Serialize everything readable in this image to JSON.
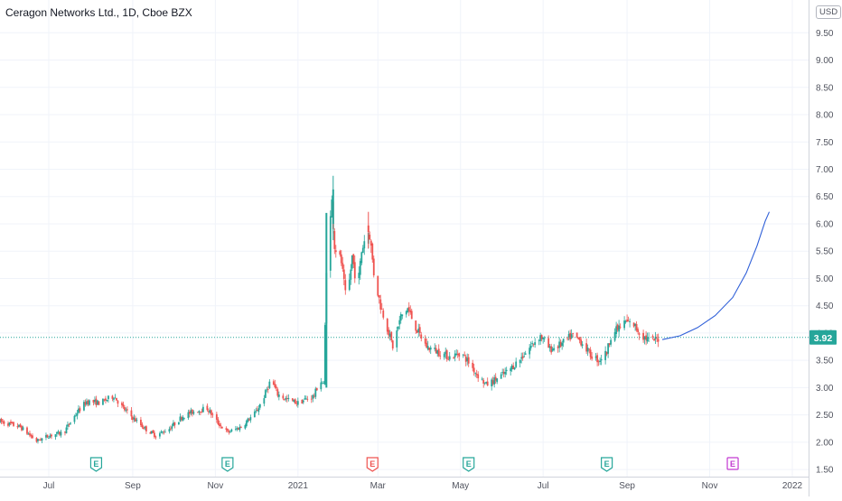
{
  "header": {
    "title": "Ceragon Networks Ltd., 1D, Cboe BZX",
    "currency": "USD"
  },
  "chart_data": {
    "type": "candlestick",
    "y_ticks": [
      1.5,
      2.0,
      2.5,
      3.0,
      3.5,
      4.0,
      4.5,
      5.0,
      5.5,
      6.0,
      6.5,
      7.0,
      7.5,
      8.0,
      8.5,
      9.0,
      9.5
    ],
    "ylim": [
      1.37,
      10.1
    ],
    "x_ticks": [
      {
        "label": "Jul",
        "date": "2020-07-01"
      },
      {
        "label": "Sep",
        "date": "2020-09-01"
      },
      {
        "label": "Nov",
        "date": "2020-11-01"
      },
      {
        "label": "2021",
        "date": "2021-01-01"
      },
      {
        "label": "Mar",
        "date": "2021-03-01"
      },
      {
        "label": "May",
        "date": "2021-05-01"
      },
      {
        "label": "Jul",
        "date": "2021-07-01"
      },
      {
        "label": "Sep",
        "date": "2021-09-01"
      },
      {
        "label": "Nov",
        "date": "2021-11-01"
      },
      {
        "label": "2022",
        "date": "2022-01-01"
      }
    ],
    "xlim": [
      "2020-05-26",
      "2022-01-13"
    ],
    "last_price": 3.92,
    "last_price_label": "3.92",
    "price_path": [
      [
        "2020-05-26",
        2.38
      ],
      [
        "2020-06-10",
        2.28
      ],
      [
        "2020-06-22",
        2.02
      ],
      [
        "2020-07-01",
        2.12
      ],
      [
        "2020-07-12",
        2.18
      ],
      [
        "2020-07-22",
        2.55
      ],
      [
        "2020-07-29",
        2.75
      ],
      [
        "2020-08-08",
        2.72
      ],
      [
        "2020-08-18",
        2.85
      ],
      [
        "2020-08-25",
        2.62
      ],
      [
        "2020-09-01",
        2.45
      ],
      [
        "2020-09-10",
        2.25
      ],
      [
        "2020-09-18",
        2.12
      ],
      [
        "2020-09-28",
        2.25
      ],
      [
        "2020-10-08",
        2.48
      ],
      [
        "2020-10-18",
        2.58
      ],
      [
        "2020-10-26",
        2.62
      ],
      [
        "2020-11-03",
        2.35
      ],
      [
        "2020-11-10",
        2.18
      ],
      [
        "2020-11-20",
        2.28
      ],
      [
        "2020-12-01",
        2.55
      ],
      [
        "2020-12-06",
        2.78
      ],
      [
        "2020-12-12",
        3.15
      ],
      [
        "2020-12-17",
        2.88
      ],
      [
        "2020-12-24",
        2.78
      ],
      [
        "2021-01-01",
        2.72
      ],
      [
        "2021-01-06",
        2.78
      ],
      [
        "2021-01-13",
        2.85
      ],
      [
        "2021-01-17",
        3.15
      ],
      [
        "2021-01-20",
        3.05
      ],
      [
        "2021-01-22",
        5.2
      ],
      [
        "2021-01-26",
        6.4
      ],
      [
        "2021-01-28",
        5.6
      ],
      [
        "2021-02-02",
        5.3
      ],
      [
        "2021-02-06",
        4.5
      ],
      [
        "2021-02-10",
        5.4
      ],
      [
        "2021-02-14",
        4.8
      ],
      [
        "2021-02-17",
        5.5
      ],
      [
        "2021-02-21",
        5.9
      ],
      [
        "2021-02-23",
        5.8
      ],
      [
        "2021-02-26",
        5.1
      ],
      [
        "2021-03-03",
        4.5
      ],
      [
        "2021-03-08",
        4.1
      ],
      [
        "2021-03-12",
        3.75
      ],
      [
        "2021-03-18",
        4.3
      ],
      [
        "2021-03-23",
        4.45
      ],
      [
        "2021-03-30",
        4.05
      ],
      [
        "2021-04-06",
        3.75
      ],
      [
        "2021-04-15",
        3.65
      ],
      [
        "2021-04-24",
        3.55
      ],
      [
        "2021-05-01",
        3.65
      ],
      [
        "2021-05-06",
        3.5
      ],
      [
        "2021-05-13",
        3.25
      ],
      [
        "2021-05-20",
        3.05
      ],
      [
        "2021-05-27",
        3.15
      ],
      [
        "2021-06-05",
        3.3
      ],
      [
        "2021-06-15",
        3.55
      ],
      [
        "2021-06-25",
        3.85
      ],
      [
        "2021-06-29",
        3.95
      ],
      [
        "2021-07-06",
        3.7
      ],
      [
        "2021-07-15",
        3.8
      ],
      [
        "2021-07-22",
        3.95
      ],
      [
        "2021-07-29",
        3.85
      ],
      [
        "2021-08-05",
        3.6
      ],
      [
        "2021-08-11",
        3.5
      ],
      [
        "2021-08-17",
        3.65
      ],
      [
        "2021-08-20",
        3.95
      ],
      [
        "2021-08-26",
        4.1
      ],
      [
        "2021-08-31",
        4.2
      ],
      [
        "2021-09-06",
        4.15
      ],
      [
        "2021-09-12",
        3.95
      ],
      [
        "2021-09-19",
        3.85
      ],
      [
        "2021-09-26",
        3.92
      ]
    ],
    "spikes": [
      {
        "date": "2021-01-27",
        "value": 6.88
      },
      {
        "date": "2021-02-22",
        "value": 6.22
      }
    ],
    "projection_curve": [
      [
        "2021-09-27",
        3.88
      ],
      [
        "2021-10-10",
        3.95
      ],
      [
        "2021-10-23",
        4.1
      ],
      [
        "2021-11-05",
        4.32
      ],
      [
        "2021-11-18",
        4.65
      ],
      [
        "2021-11-28",
        5.1
      ],
      [
        "2021-12-06",
        5.6
      ],
      [
        "2021-12-12",
        6.05
      ],
      [
        "2021-12-15",
        6.22
      ]
    ],
    "earnings": [
      {
        "date": "2020-08-05",
        "label": "E",
        "kind": "positive"
      },
      {
        "date": "2020-11-10",
        "label": "E",
        "kind": "positive"
      },
      {
        "date": "2021-02-25",
        "label": "E",
        "kind": "negative"
      },
      {
        "date": "2021-05-07",
        "label": "E",
        "kind": "positive"
      },
      {
        "date": "2021-08-17",
        "label": "E",
        "kind": "positive"
      },
      {
        "date": "2021-11-18",
        "label": "E",
        "kind": "upcoming"
      }
    ],
    "colors": {
      "up": "#26a69a",
      "down": "#ef5350",
      "grid": "#f0f3fa",
      "axis": "#d1d4dc",
      "text": "#50535e",
      "price_line": "#26a69a",
      "projection": "#2f5fd8",
      "earnings_upcoming": "#c239d1",
      "label_bg": "#26a69a"
    },
    "grid": true
  }
}
